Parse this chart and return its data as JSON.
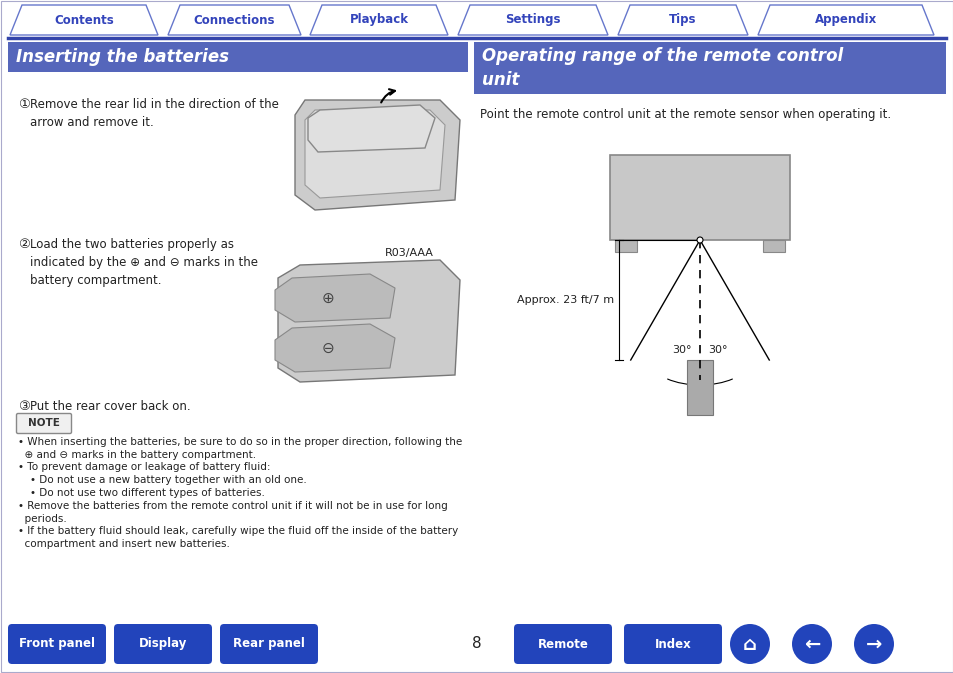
{
  "bg_color": "#ffffff",
  "top_tabs": [
    "Contents",
    "Connections",
    "Playback",
    "Settings",
    "Tips",
    "Appendix"
  ],
  "tab_text_color": "#3344bb",
  "tab_border_color": "#6677cc",
  "divider_color": "#3344aa",
  "left_header": "Inserting the batteries",
  "right_header_line1": "Operating range of the remote control",
  "right_header_line2": "unit",
  "header_bg": "#5566bb",
  "header_text_color": "#ffffff",
  "step1_num": "①",
  "step1_text": "Remove the rear lid in the direction of the\narrow and remove it.",
  "step2_num": "②",
  "step2_text": "Load the two batteries properly as\nindicated by the ⊕ and ⊖ marks in the\nbattery compartment.",
  "step2_label": "R03/AAA",
  "step3_num": "③",
  "step3_text": "Put the rear cover back on.",
  "note_label": "NOTE",
  "note_bullets": [
    "• When inserting the batteries, be sure to do so in the proper direction, following the\n  ⊕ and ⊖ marks in the battery compartment.",
    "• To prevent damage or leakage of battery fluid:",
    "    • Do not use a new battery together with an old one.",
    "    • Do not use two different types of batteries.",
    "• Remove the batteries from the remote control unit if it will not be in use for long\n  periods.",
    "• If the battery fluid should leak, carefully wipe the fluid off the inside of the battery\n  compartment and insert new batteries."
  ],
  "right_desc": "Point the remote control unit at the remote sensor when operating it.",
  "approx_text": "Approx. 23 ft/7 m",
  "angle_left": "30°",
  "angle_right": "30°",
  "bottom_buttons_left": [
    "Front panel",
    "Display",
    "Rear panel"
  ],
  "bottom_buttons_right": [
    "Remote",
    "Index"
  ],
  "bottom_btn_color": "#2244bb",
  "page_number": "8"
}
